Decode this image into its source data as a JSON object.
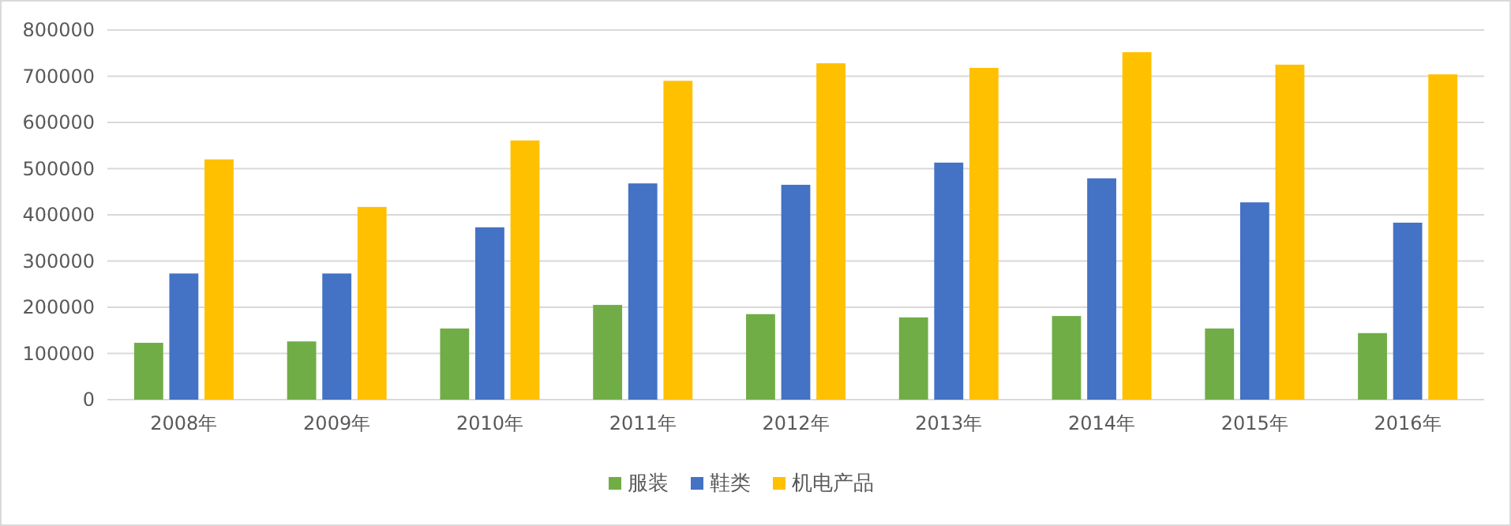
{
  "chart_data": {
    "type": "bar",
    "categories": [
      "2008年",
      "2009年",
      "2010年",
      "2011年",
      "2012年",
      "2013年",
      "2014年",
      "2015年",
      "2016年"
    ],
    "series": [
      {
        "name": "服装",
        "color": "#70ad47",
        "values": [
          123000,
          126000,
          154000,
          205000,
          185000,
          178000,
          181000,
          154000,
          144000
        ]
      },
      {
        "name": "鞋类",
        "color": "#4472c4",
        "values": [
          273000,
          273000,
          373000,
          468000,
          465000,
          513000,
          479000,
          427000,
          383000
        ]
      },
      {
        "name": "机电产品",
        "color": "#ffc000",
        "values": [
          520000,
          417000,
          561000,
          690000,
          728000,
          718000,
          752000,
          725000,
          704000
        ]
      }
    ],
    "ylim": [
      0,
      800000
    ],
    "yticks": [
      0,
      100000,
      200000,
      300000,
      400000,
      500000,
      600000,
      700000,
      800000
    ],
    "grid": "y",
    "legend": "bottom"
  }
}
